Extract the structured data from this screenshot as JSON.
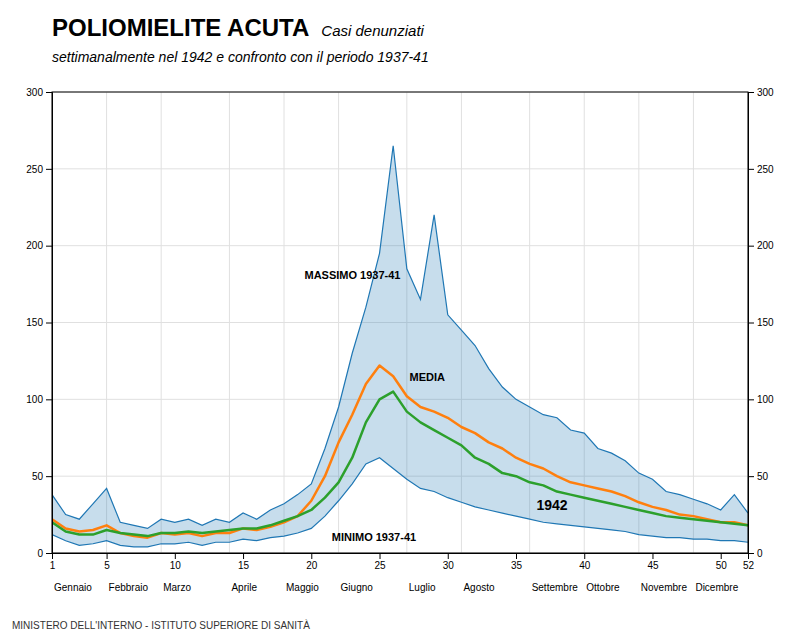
{
  "chart_data": {
    "type": "line",
    "title": "POLIOMIELITE ACUTA",
    "subtitle": [
      "Casi denunziati",
      "settimanalmente nel 1942 e confronto con il periodo 1937-41"
    ],
    "footer": "MINISTERO DELL'INTERNO - ISTITUTO SUPERIORE DI SANITÀ",
    "x": [
      1,
      2,
      3,
      4,
      5,
      6,
      7,
      8,
      9,
      10,
      11,
      12,
      13,
      14,
      15,
      16,
      17,
      18,
      19,
      20,
      21,
      22,
      23,
      24,
      25,
      26,
      27,
      28,
      29,
      30,
      31,
      32,
      33,
      34,
      35,
      36,
      37,
      38,
      39,
      40,
      41,
      42,
      43,
      44,
      45,
      46,
      47,
      48,
      49,
      50,
      51,
      52
    ],
    "series": [
      {
        "type": "area",
        "values": [
          38,
          25,
          22,
          32,
          42,
          20,
          18,
          16,
          22,
          20,
          22,
          18,
          22,
          20,
          26,
          22,
          28,
          32,
          38,
          45,
          68,
          95,
          130,
          160,
          195,
          265,
          185,
          165,
          220,
          155,
          145,
          135,
          120,
          108,
          100,
          95,
          90,
          88,
          80,
          78,
          68,
          65,
          60,
          52,
          48,
          40,
          38,
          35,
          32,
          28,
          38,
          26
        ],
        "values_low": [
          12,
          8,
          5,
          6,
          8,
          5,
          4,
          4,
          6,
          6,
          7,
          5,
          7,
          7,
          9,
          8,
          10,
          11,
          13,
          16,
          24,
          34,
          45,
          58,
          62,
          55,
          48,
          42,
          40,
          36,
          33,
          30,
          28,
          26,
          24,
          22,
          20,
          19,
          18,
          17,
          16,
          15,
          14,
          12,
          11,
          10,
          10,
          9,
          9,
          8,
          8,
          7
        ]
      },
      {
        "type": "line",
        "values": [
          22,
          16,
          14,
          15,
          18,
          13,
          11,
          10,
          13,
          12,
          13,
          11,
          13,
          13,
          16,
          15,
          17,
          20,
          24,
          34,
          50,
          72,
          90,
          110,
          122,
          115,
          102,
          95,
          92,
          88,
          82,
          78,
          72,
          68,
          62,
          58,
          55,
          50,
          46,
          44,
          42,
          40,
          37,
          33,
          30,
          28,
          25,
          24,
          22,
          20,
          20,
          18
        ]
      },
      {
        "type": "line",
        "values": [
          20,
          14,
          12,
          12,
          15,
          13,
          12,
          11,
          13,
          13,
          14,
          13,
          14,
          15,
          16,
          16,
          18,
          21,
          24,
          28,
          36,
          46,
          62,
          85,
          100,
          105,
          92,
          85,
          80,
          75,
          70,
          62,
          58,
          52,
          50,
          46,
          44,
          40,
          38,
          36,
          34,
          32,
          30,
          28,
          26,
          24,
          23,
          22,
          21,
          20,
          19,
          18
        ]
      }
    ],
    "annotations": [
      {
        "text": "MASSIMO  1937-41",
        "x": 19.5,
        "y": 178
      },
      {
        "text": "MEDIA",
        "x": 27.2,
        "y": 112
      },
      {
        "text": "MINIMO 1937-41",
        "x": 21.5,
        "y": 8
      },
      {
        "text": "1942",
        "x": 36.5,
        "y": 28
      }
    ],
    "xlim": [
      1,
      52
    ],
    "xticks": [
      1,
      5,
      10,
      15,
      20,
      25,
      30,
      35,
      40,
      45,
      50,
      52
    ],
    "ylim": [
      0,
      300
    ],
    "yticks": [
      0,
      50,
      100,
      150,
      200,
      250,
      300
    ],
    "y2lim": [
      0,
      300
    ],
    "y2ticks": [
      0,
      50,
      100,
      150,
      200,
      250,
      300
    ],
    "grid": true,
    "month_labels": [
      "Gennaio",
      "Febbraio",
      "Marzo",
      "Aprile",
      "Maggio",
      "Giugno",
      "Luglio",
      "Agosto",
      "Settembre",
      "Ottobre",
      "Novembre",
      "Dicembre"
    ],
    "month_start_weeks": [
      1,
      5,
      9,
      14,
      18,
      22,
      27,
      31,
      36,
      40,
      44,
      48
    ],
    "month_boundaries": [
      1,
      5,
      9,
      14,
      18,
      22,
      27,
      31,
      36,
      40,
      44,
      48,
      52
    ]
  }
}
